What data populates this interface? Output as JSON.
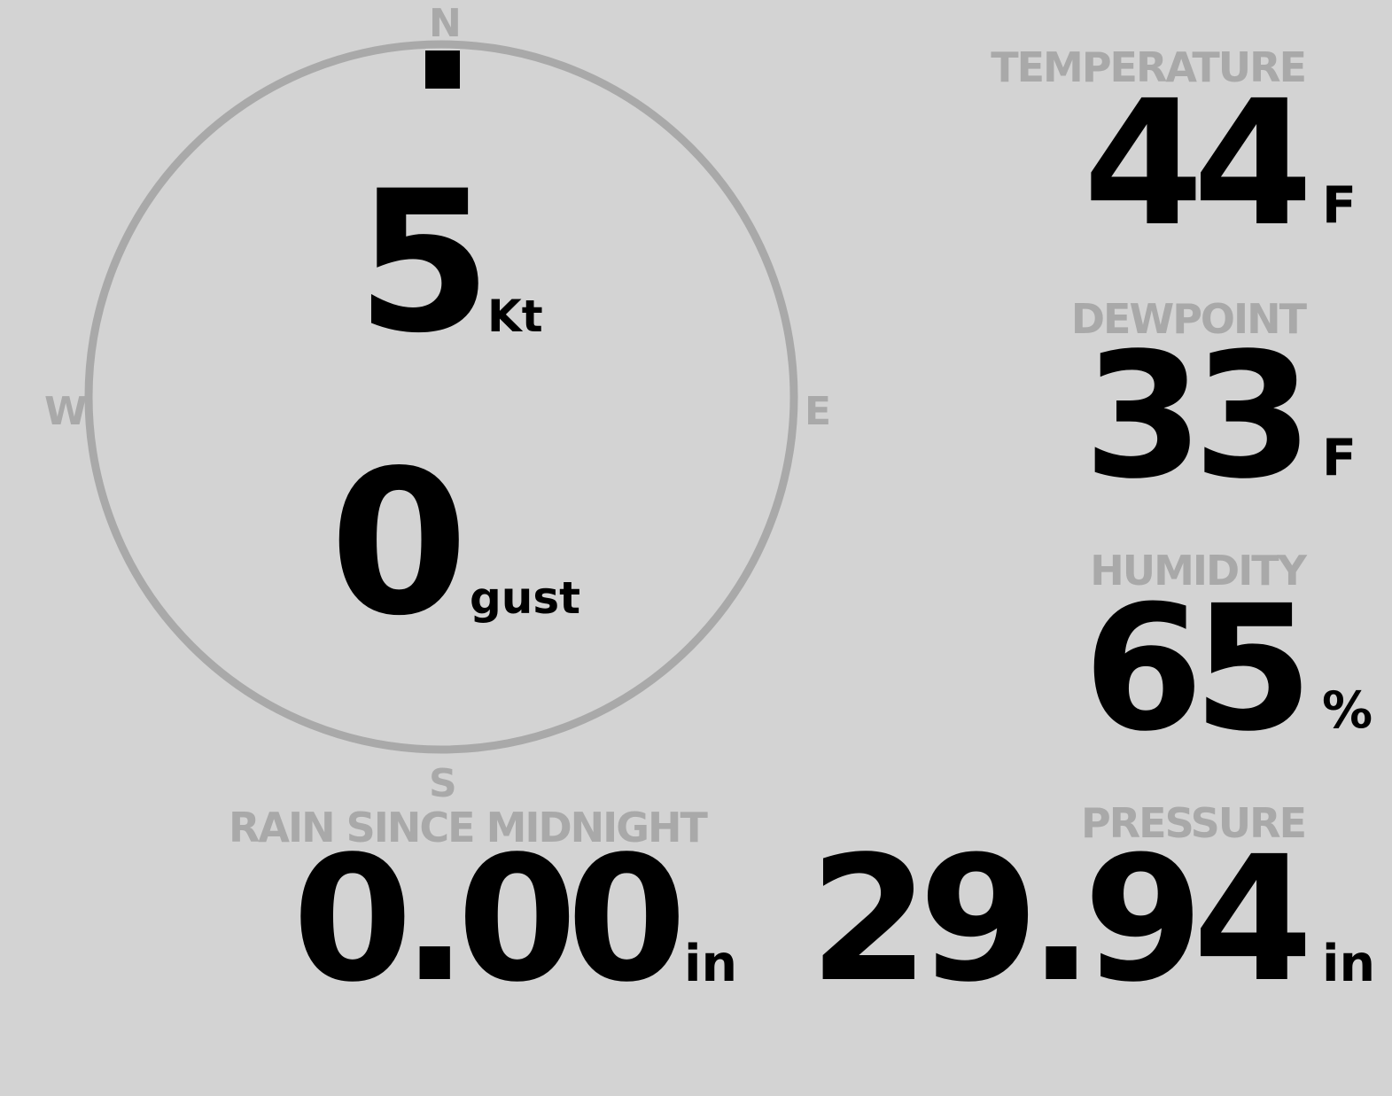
{
  "wind": {
    "speed": "5",
    "speed_unit": "Kt",
    "gust": "0",
    "gust_unit": "gust",
    "direction_deg": 0,
    "compass": {
      "n": "N",
      "e": "E",
      "s": "S",
      "w": "W"
    }
  },
  "temperature": {
    "label": "TEMPERATURE",
    "value": "44",
    "unit": "F"
  },
  "dewpoint": {
    "label": "DEWPOINT",
    "value": "33",
    "unit": "F"
  },
  "humidity": {
    "label": "HUMIDITY",
    "value": "65",
    "unit": "%"
  },
  "pressure": {
    "label": "PRESSURE",
    "value": "29.94",
    "unit": "in"
  },
  "rain": {
    "label": "RAIN SINCE MIDNIGHT",
    "value": "0.00",
    "unit": "in"
  },
  "colors": {
    "background": "#d3d3d3",
    "label": "#a9a9a9",
    "value": "#000000"
  }
}
